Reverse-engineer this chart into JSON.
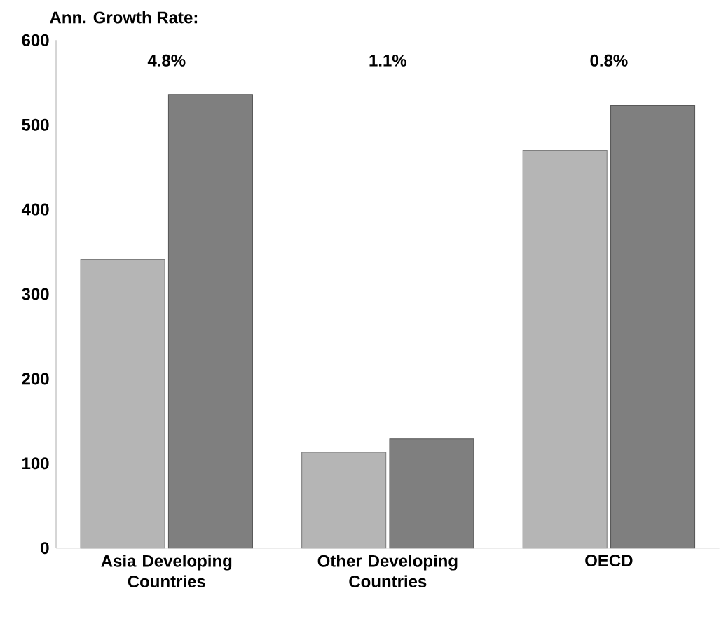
{
  "chart_data": {
    "type": "bar",
    "categories": [
      "Asia Developing Countries",
      "Other Developing Countries",
      "OECD"
    ],
    "series": [
      {
        "color": "#b5b5b5",
        "values": [
          341,
          113,
          470
        ]
      },
      {
        "color": "#7f7f7f",
        "values": [
          536,
          129,
          523
        ]
      }
    ],
    "ylim": [
      0,
      600
    ],
    "yticks": [
      0,
      100,
      200,
      300,
      400,
      500,
      600
    ],
    "annotations": [
      "Ann. Growth Rate:",
      "4.8%",
      "1.1%",
      "0.8%"
    ],
    "grid": false
  }
}
